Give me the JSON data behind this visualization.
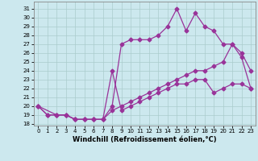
{
  "title": "",
  "xlabel": "Windchill (Refroidissement éolien,°C)",
  "bg_color": "#cce8ee",
  "grid_color": "#aacccc",
  "line_color": "#993399",
  "xlim_min": -0.5,
  "xlim_max": 23.5,
  "ylim_min": 17.8,
  "ylim_max": 31.8,
  "xticks": [
    0,
    1,
    2,
    3,
    4,
    5,
    6,
    7,
    8,
    9,
    10,
    11,
    12,
    13,
    14,
    15,
    16,
    17,
    18,
    19,
    20,
    21,
    22,
    23
  ],
  "yticks": [
    18,
    19,
    20,
    21,
    22,
    23,
    24,
    25,
    26,
    27,
    28,
    29,
    30,
    31
  ],
  "curve1_x": [
    0,
    1,
    2,
    3,
    4,
    5,
    6,
    7,
    8,
    9,
    10,
    11,
    12,
    13,
    14,
    15,
    16,
    17,
    18,
    19,
    20,
    21,
    22,
    23
  ],
  "curve1_y": [
    20,
    19,
    19,
    19,
    18.5,
    18.5,
    18.5,
    18.5,
    19.5,
    20,
    20.5,
    21,
    21.5,
    22,
    22.5,
    23,
    23.5,
    24,
    24,
    24.5,
    25,
    27,
    25.5,
    22
  ],
  "curve2_x": [
    0,
    1,
    2,
    3,
    4,
    5,
    6,
    7,
    8,
    9,
    10,
    11,
    12,
    13,
    14,
    15,
    16,
    17,
    18,
    19,
    20,
    21,
    22,
    23
  ],
  "curve2_y": [
    20,
    19,
    19,
    19,
    18.5,
    18.5,
    18.5,
    18.5,
    24,
    19.5,
    20,
    20.5,
    21,
    21.5,
    22,
    22.5,
    22.5,
    23,
    23,
    21.5,
    22,
    22.5,
    22.5,
    22
  ],
  "curve3_x": [
    0,
    2,
    3,
    4,
    5,
    6,
    7,
    8,
    9,
    10,
    11,
    12,
    13,
    14,
    15,
    16,
    17,
    18,
    19,
    20,
    21,
    22,
    23
  ],
  "curve3_y": [
    20,
    19,
    19,
    18.5,
    18.5,
    18.5,
    18.5,
    20,
    27,
    27.5,
    27.5,
    27.5,
    28,
    29,
    31,
    28.5,
    30.5,
    29,
    28.5,
    27,
    27,
    26,
    24
  ],
  "marker": "D",
  "markersize": 2.5,
  "linewidth": 0.9,
  "tick_fontsize": 5.0,
  "label_fontsize": 6.0
}
